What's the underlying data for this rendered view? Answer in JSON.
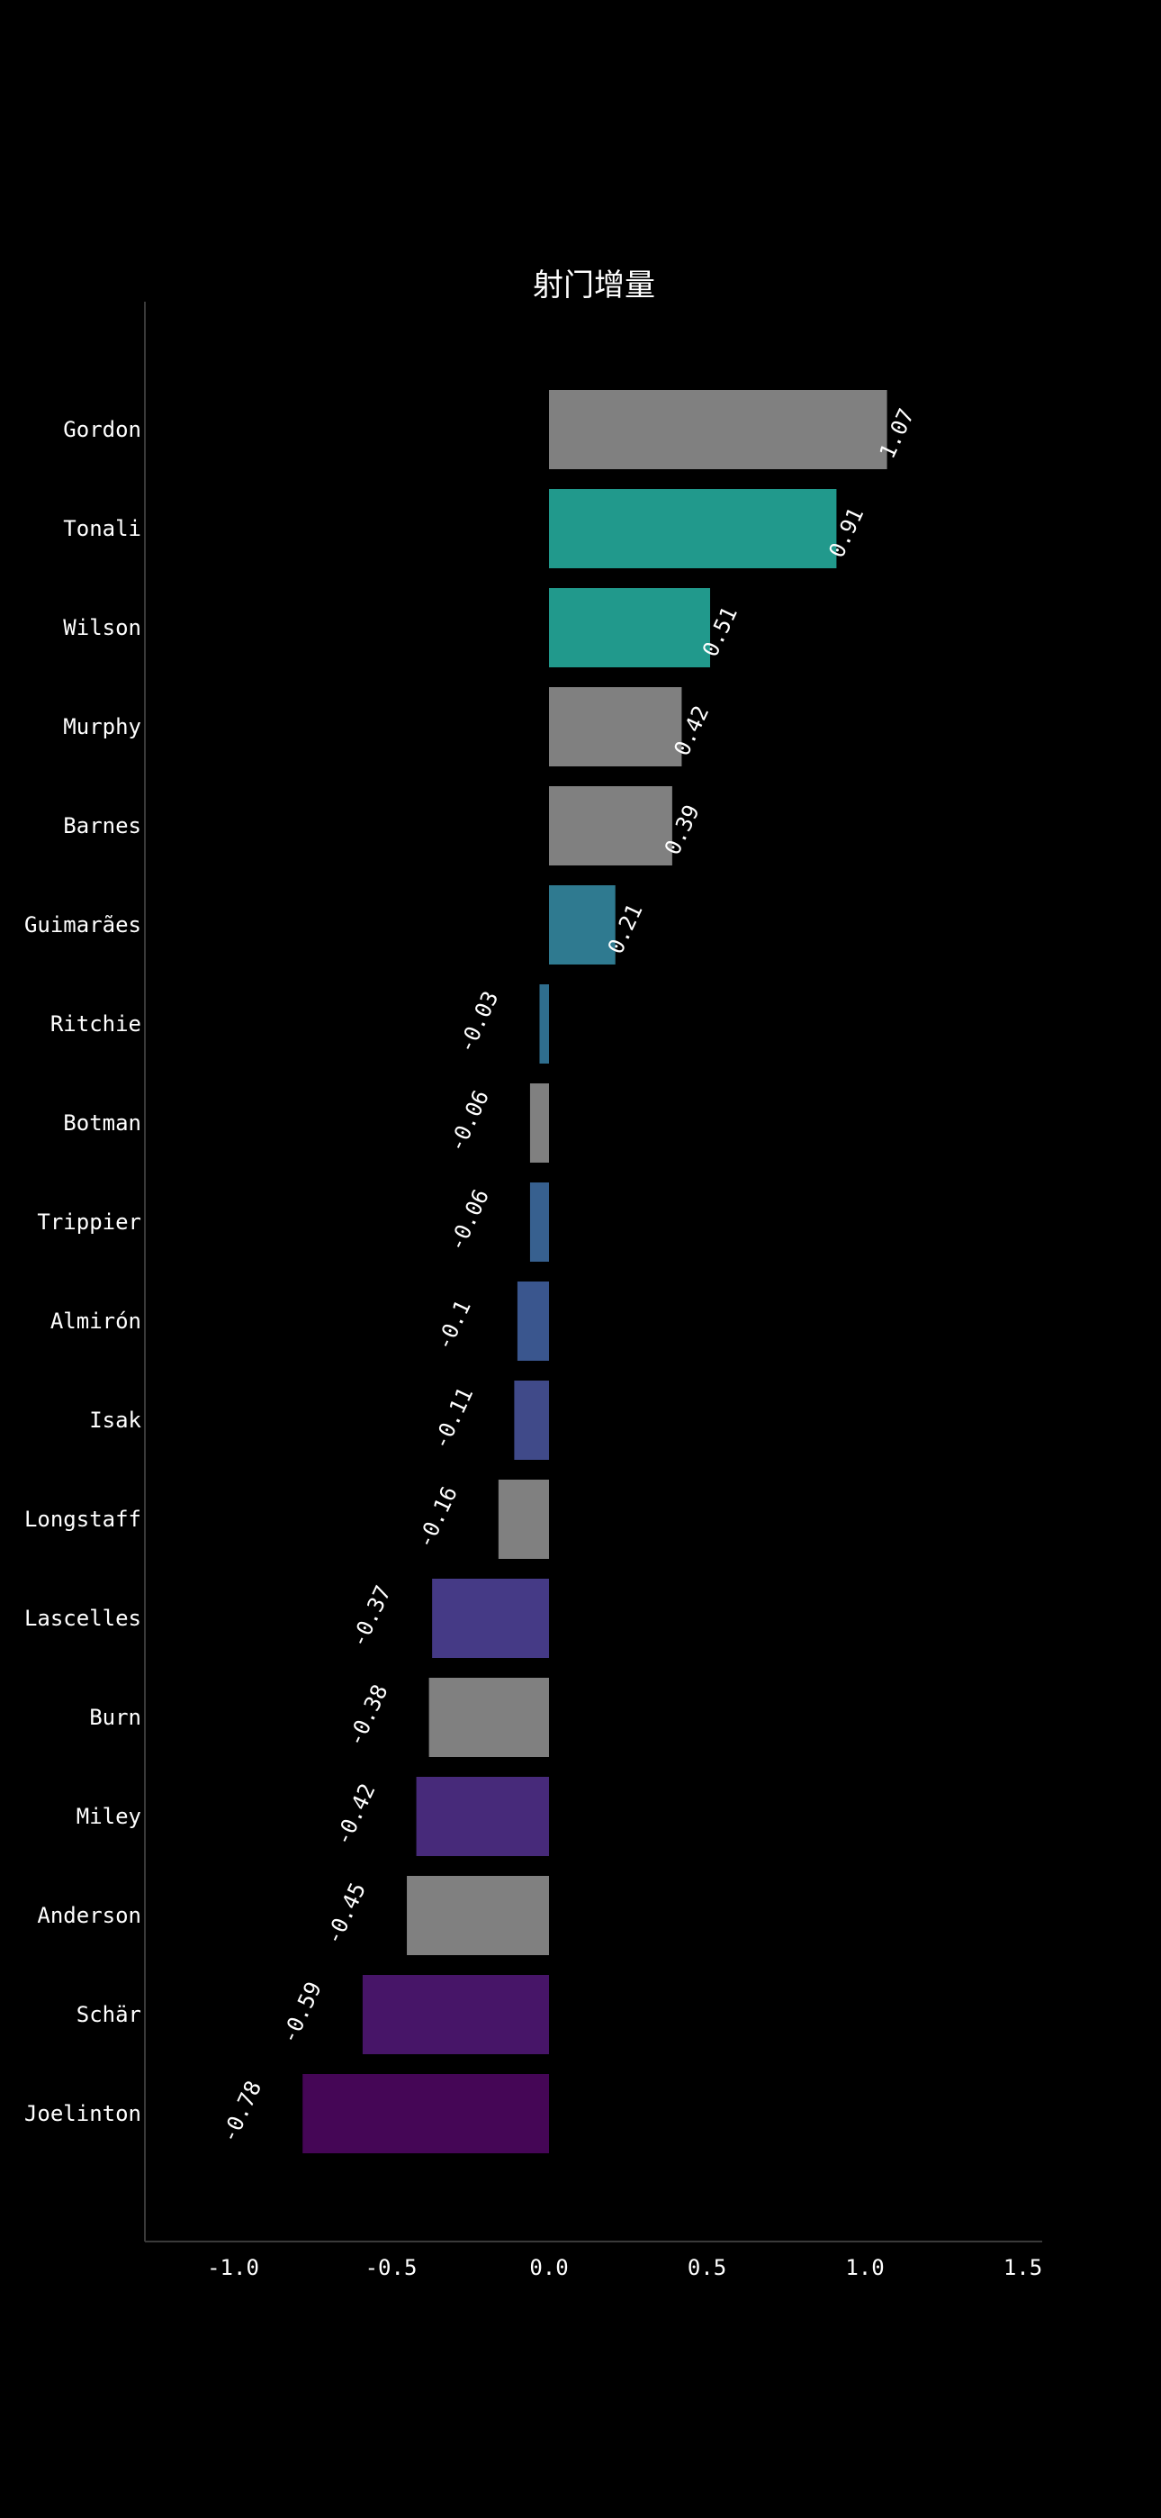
{
  "chart_data": {
    "type": "bar",
    "orientation": "horizontal",
    "title": "射门增量",
    "xlabel": "",
    "ylabel": "",
    "xlim": [
      -1.28,
      1.56
    ],
    "xticks": [
      -1.0,
      -0.5,
      0.0,
      0.5,
      1.0,
      1.5
    ],
    "xtick_labels": [
      "-1.0",
      "-0.5",
      "0.0",
      "0.5",
      "1.0",
      "1.5"
    ],
    "grid": false,
    "legend": "none",
    "categories": [
      "Gordon",
      "Tonali",
      "Wilson",
      "Murphy",
      "Barnes",
      "Guimarães",
      "Ritchie",
      "Botman",
      "Trippier",
      "Almirón",
      "Isak",
      "Longstaff",
      "Lascelles",
      "Burn",
      "Miley",
      "Anderson",
      "Schär",
      "Joelinton"
    ],
    "values": [
      1.07,
      0.91,
      0.51,
      0.42,
      0.39,
      0.21,
      -0.03,
      -0.06,
      -0.06,
      -0.1,
      -0.11,
      -0.16,
      -0.37,
      -0.38,
      -0.42,
      -0.45,
      -0.59,
      -0.78
    ],
    "value_labels": [
      "1.07",
      "0.91",
      "0.51",
      "0.42",
      "0.39",
      "0.21",
      "-0.03",
      "-0.06",
      "-0.06",
      "-0.1",
      "-0.11",
      "-0.16",
      "-0.37",
      "-0.38",
      "-0.42",
      "-0.45",
      "-0.59",
      "-0.78"
    ],
    "colors": [
      "#808080",
      "#21998c",
      "#21998c",
      "#808080",
      "#808080",
      "#2f7a90",
      "#2f6e8e",
      "#808080",
      "#37608f",
      "#3a568e",
      "#404a89",
      "#808080",
      "#453a86",
      "#808080",
      "#472a7a",
      "#808080",
      "#471568",
      "#450656"
    ],
    "background": "#000000",
    "text_color": "#ffffff",
    "axis_color": "#3a3a3a"
  }
}
